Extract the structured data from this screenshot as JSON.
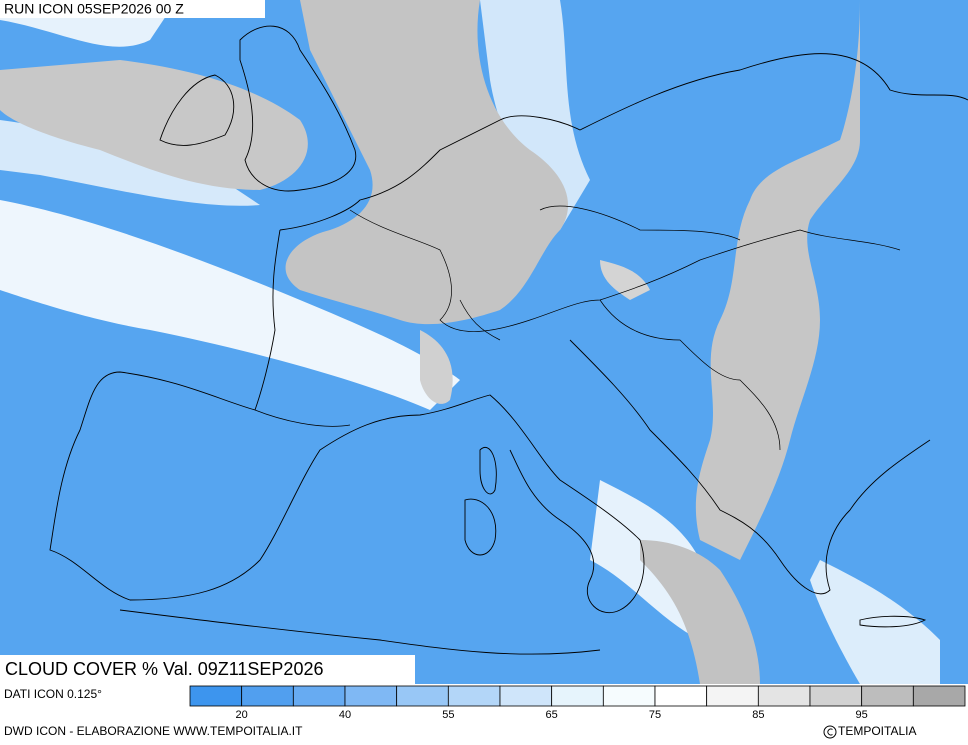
{
  "header": {
    "run": "RUN ICON 05SEP2026 00 Z"
  },
  "map": {
    "label": "CLOUD COVER % Val. 09Z11SEP2026"
  },
  "footer": {
    "data_source": "DATI ICON 0.125°",
    "credits": "DWD ICON - ELABORAZIONE WWW.TEMPOITALIA.IT",
    "brand": "TEMPOITALIA"
  },
  "legend": {
    "colors": [
      "#3d95ee",
      "#519fef",
      "#67abf2",
      "#7fb8f4",
      "#98c7f6",
      "#b3d6f8",
      "#cfe5fa",
      "#e6f4fc",
      "#f6fcfe",
      "#ffffff",
      "#f4f4f4",
      "#e4e4e4",
      "#d2d2d2",
      "#bdbdbd",
      "#a8a8a8"
    ],
    "labels": [
      20,
      40,
      55,
      65,
      75,
      85,
      95
    ]
  }
}
